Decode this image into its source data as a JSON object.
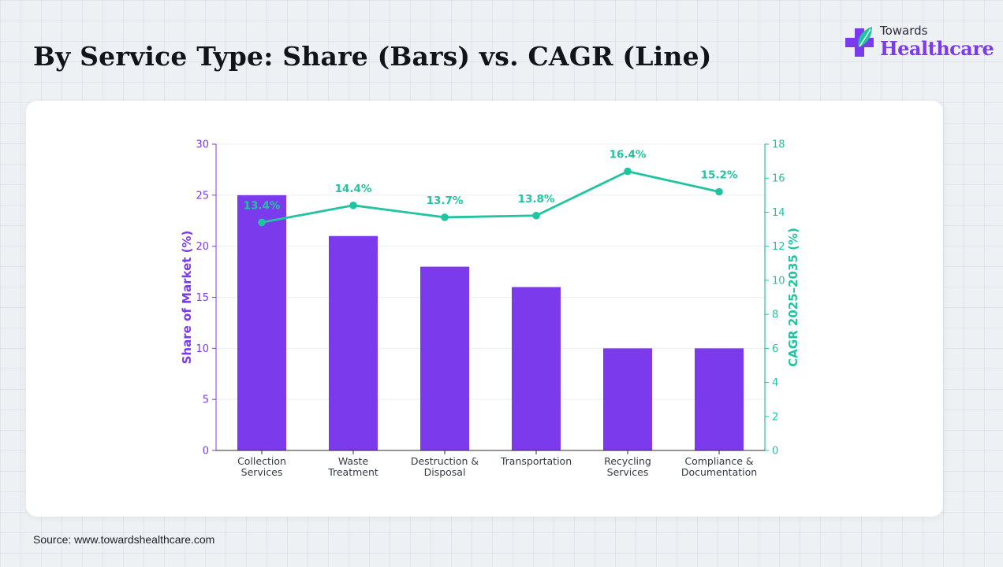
{
  "header": {
    "title": "By Service Type: Share (Bars) vs. CAGR (Line)",
    "logo_small": "Towards",
    "logo_big": "Healthcare"
  },
  "footer": {
    "source": "Source: www.towardshealthcare.com"
  },
  "colors": {
    "bar": "#7c3aed",
    "line": "#20c4a0",
    "axis_left": "#7c3aed",
    "axis_right": "#20c4a0"
  },
  "chart_data": {
    "type": "bar",
    "categories": [
      [
        "Collection",
        "Services"
      ],
      [
        "Waste",
        "Treatment"
      ],
      [
        "Destruction &",
        "Disposal"
      ],
      [
        "Transportation"
      ],
      [
        "Recycling",
        "Services"
      ],
      [
        "Compliance &",
        "Documentation"
      ]
    ],
    "series": [
      {
        "type": "bar",
        "axis": "left",
        "values": [
          25,
          21,
          18,
          16,
          10,
          10
        ]
      },
      {
        "type": "line",
        "axis": "right",
        "values": [
          13.4,
          14.4,
          13.7,
          13.8,
          16.4,
          15.2
        ],
        "labels": [
          "13.4%",
          "14.4%",
          "13.7%",
          "13.8%",
          "16.4%",
          "15.2%"
        ]
      }
    ],
    "ylabel": "Share of Market (%)",
    "y2label": "CAGR 2025–2035 (%)",
    "ylim": [
      0,
      30
    ],
    "y2lim": [
      0,
      18
    ],
    "yticks": [
      0,
      5,
      10,
      15,
      20,
      25,
      30
    ],
    "y2ticks": [
      0,
      2,
      4,
      6,
      8,
      10,
      12,
      14,
      16,
      18
    ],
    "grid": true
  }
}
